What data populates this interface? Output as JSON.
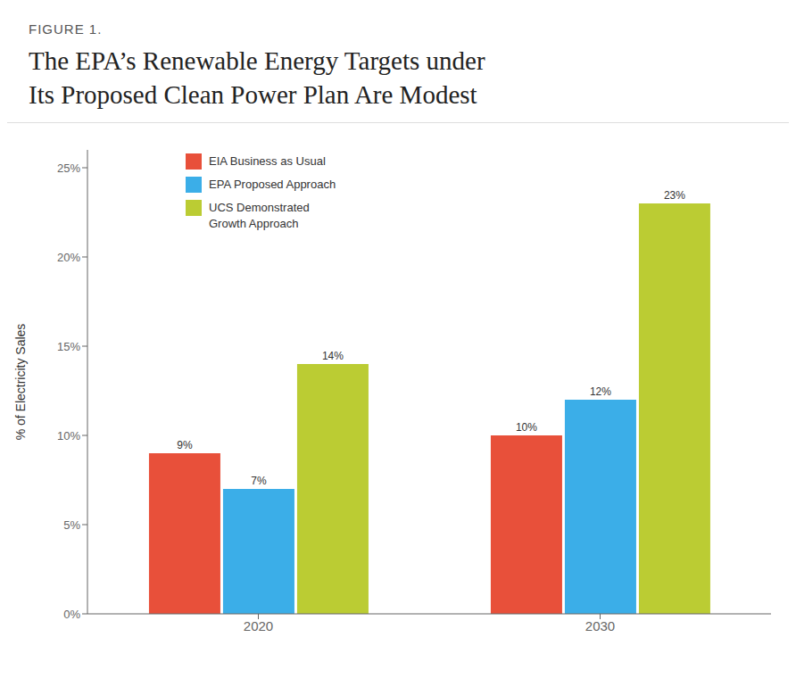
{
  "chart_data": {
    "type": "bar",
    "subtitle": "FIGURE 1.",
    "title": "The EPA’s Renewable Energy Targets under\nIts Proposed Clean Power Plan Are Modest",
    "ylabel": "% of Electricity Sales",
    "categories": [
      "2020",
      "2030"
    ],
    "series": [
      {
        "name": "EIA Business as Usual",
        "color": "#E8503A",
        "values": [
          9,
          10
        ],
        "value_labels": [
          "9%",
          "10%"
        ]
      },
      {
        "name": "EPA Proposed Approach",
        "color": "#3BAEE8",
        "values": [
          7,
          12
        ],
        "value_labels": [
          "7%",
          "12%"
        ]
      },
      {
        "name": "UCS Demonstrated\nGrowth Approach",
        "color": "#BBCC33",
        "values": [
          14,
          23
        ],
        "value_labels": [
          "14%",
          "23%"
        ]
      }
    ],
    "ylim": [
      0,
      26
    ],
    "yticks": [
      {
        "value": 0,
        "label": "0%"
      },
      {
        "value": 5,
        "label": "5%"
      },
      {
        "value": 10,
        "label": "10%"
      },
      {
        "value": 15,
        "label": "15%"
      },
      {
        "value": 20,
        "label": "20%"
      },
      {
        "value": 25,
        "label": "25%"
      }
    ],
    "grid": false,
    "legend": "upper left",
    "data_labels": true
  }
}
